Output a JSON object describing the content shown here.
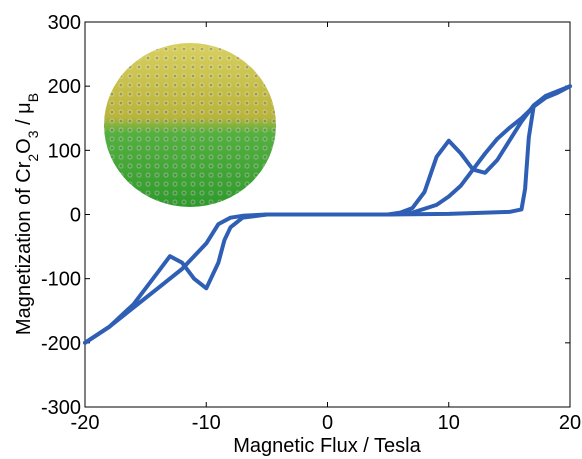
{
  "chart_data": {
    "type": "line",
    "xlabel": "Magnetic Flux / Tesla",
    "ylabel": [
      "Magnetization of Cr",
      "2",
      "O",
      "3",
      " / μ",
      "B"
    ],
    "xlim": [
      -20,
      20
    ],
    "xticks": [
      -20,
      -10,
      0,
      10,
      20
    ],
    "ylim": [
      -300,
      300
    ],
    "yticks": [
      -300,
      -200,
      -100,
      0,
      100,
      200,
      300
    ],
    "series": [
      {
        "color": "#2f5fb5",
        "x": [
          -20,
          -18,
          -16,
          -14,
          -13,
          -12,
          -11,
          -10,
          -9,
          -8.5,
          -8,
          -7,
          -5,
          0,
          5,
          10,
          15,
          16,
          16.3,
          16.6,
          17,
          18,
          19,
          20
        ],
        "values": [
          -200,
          -175,
          -140,
          -90,
          -65,
          -75,
          -100,
          -115,
          -75,
          -40,
          -20,
          -5,
          0,
          0,
          0,
          1,
          4,
          8,
          40,
          120,
          168,
          182,
          190,
          200
        ]
      },
      {
        "color": "#2f5fb5",
        "x": [
          20,
          18,
          17,
          16,
          15,
          14,
          13,
          12,
          11,
          10,
          9,
          8,
          7,
          6,
          5,
          0,
          -5,
          -7,
          -8,
          -9,
          -10,
          -12,
          -14,
          -16,
          -18,
          -20
        ],
        "values": [
          200,
          185,
          170,
          145,
          115,
          85,
          65,
          70,
          95,
          115,
          90,
          35,
          10,
          3,
          0,
          0,
          0,
          -2,
          -5,
          -15,
          -45,
          -85,
          -115,
          -145,
          -175,
          -200
        ]
      },
      {
        "color": "#2f5fb5",
        "x": [
          5,
          7,
          9,
          10,
          11,
          12,
          13,
          14,
          15,
          16,
          17
        ],
        "values": [
          0,
          3,
          15,
          28,
          45,
          70,
          95,
          118,
          135,
          150,
          168
        ]
      }
    ]
  }
}
